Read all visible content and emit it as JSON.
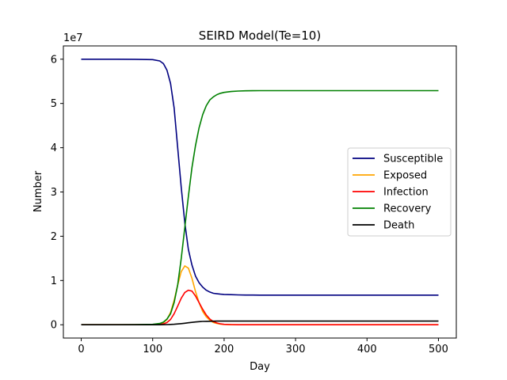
{
  "chart_data": {
    "type": "line",
    "title": "SEIRD Model(Te=10)",
    "xlabel": "Day",
    "ylabel": "Number",
    "y_offset_label": "1e7",
    "xlim": [
      -25,
      525
    ],
    "ylim": [
      -0.3,
      6.3
    ],
    "y_scale_note": "values in units of 1e7",
    "xticks": [
      0,
      100,
      200,
      300,
      400,
      500
    ],
    "yticks": [
      0,
      1,
      2,
      3,
      4,
      5,
      6
    ],
    "grid": false,
    "legend_position": "center-right",
    "x": [
      0,
      25,
      50,
      75,
      100,
      110,
      115,
      120,
      125,
      130,
      135,
      140,
      145,
      150,
      155,
      160,
      165,
      170,
      175,
      180,
      185,
      190,
      195,
      200,
      210,
      220,
      230,
      240,
      250,
      275,
      300,
      350,
      400,
      450,
      500
    ],
    "series": [
      {
        "name": "Susceptible",
        "color": "#000080",
        "values": [
          6.0,
          6.0,
          5.999,
          5.997,
          5.99,
          5.96,
          5.9,
          5.75,
          5.45,
          4.9,
          4.0,
          3.1,
          2.3,
          1.7,
          1.35,
          1.1,
          0.95,
          0.85,
          0.78,
          0.74,
          0.71,
          0.7,
          0.69,
          0.685,
          0.68,
          0.675,
          0.672,
          0.671,
          0.67,
          0.67,
          0.67,
          0.67,
          0.67,
          0.67,
          0.67
        ]
      },
      {
        "name": "Exposed",
        "color": "#ffa500",
        "values": [
          0.0,
          0.0,
          0.0,
          0.001,
          0.005,
          0.02,
          0.05,
          0.12,
          0.28,
          0.55,
          0.9,
          1.2,
          1.33,
          1.28,
          1.05,
          0.75,
          0.5,
          0.3,
          0.18,
          0.1,
          0.05,
          0.03,
          0.015,
          0.008,
          0.003,
          0.001,
          0.0,
          0.0,
          0.0,
          0.0,
          0.0,
          0.0,
          0.0,
          0.0,
          0.0
        ]
      },
      {
        "name": "Infection",
        "color": "#ff0000",
        "values": [
          0.0,
          0.0,
          0.0,
          0.0,
          0.002,
          0.008,
          0.02,
          0.05,
          0.12,
          0.25,
          0.42,
          0.6,
          0.73,
          0.78,
          0.76,
          0.65,
          0.5,
          0.35,
          0.22,
          0.13,
          0.07,
          0.04,
          0.02,
          0.01,
          0.004,
          0.001,
          0.0,
          0.0,
          0.0,
          0.0,
          0.0,
          0.0,
          0.0,
          0.0,
          0.0
        ]
      },
      {
        "name": "Recovery",
        "color": "#008000",
        "values": [
          0.0,
          0.0,
          0.0,
          0.002,
          0.01,
          0.03,
          0.06,
          0.13,
          0.25,
          0.5,
          0.9,
          1.5,
          2.2,
          2.9,
          3.55,
          4.05,
          4.45,
          4.75,
          4.95,
          5.08,
          5.15,
          5.2,
          5.23,
          5.25,
          5.27,
          5.28,
          5.285,
          5.288,
          5.29,
          5.29,
          5.29,
          5.29,
          5.29,
          5.29,
          5.29
        ]
      },
      {
        "name": "Death",
        "color": "#000000",
        "values": [
          0.0,
          0.0,
          0.0,
          0.0,
          0.0,
          0.001,
          0.002,
          0.004,
          0.007,
          0.012,
          0.018,
          0.026,
          0.035,
          0.045,
          0.055,
          0.063,
          0.07,
          0.075,
          0.078,
          0.08,
          0.081,
          0.082,
          0.082,
          0.083,
          0.083,
          0.083,
          0.083,
          0.083,
          0.083,
          0.083,
          0.083,
          0.083,
          0.083,
          0.083,
          0.083
        ]
      }
    ]
  }
}
